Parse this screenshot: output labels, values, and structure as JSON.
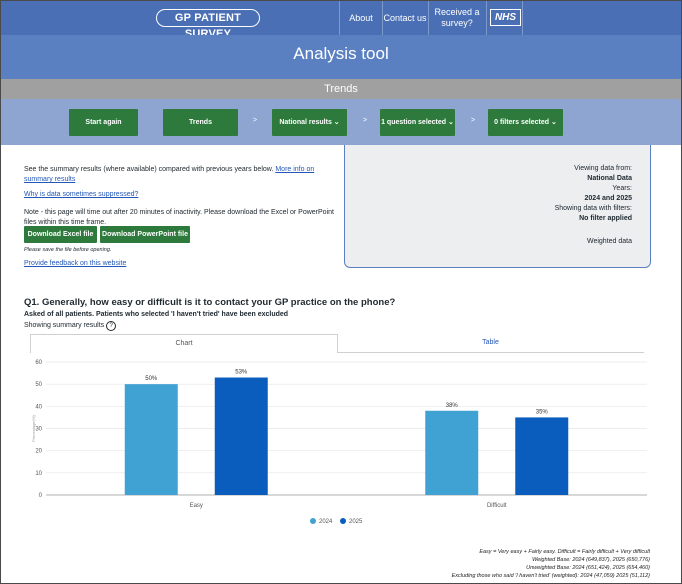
{
  "header": {
    "logo": "GP PATIENT SURVEY",
    "nav": [
      "About",
      "Contact us",
      "Received a survey?"
    ],
    "nhs": "NHS"
  },
  "page_title": "Analysis tool",
  "section_title": "Trends",
  "steps": {
    "start": "Start again",
    "trends": "Trends",
    "results": "National results",
    "question": "1 question selected",
    "filters": "0 filters selected",
    "arrow": ">"
  },
  "intro": {
    "summary_text": "See the summary results (where available) compared with previous years below.",
    "more_info_link": "More info on summary results",
    "suppressed_link": "Why is data sometimes suppressed?",
    "timeout_note": "Note - this page will time out after 20 minutes of inactivity. Please download the Excel or PowerPoint files within this time frame.",
    "download_excel": "Download Excel file",
    "download_ppt": "Download PowerPoint file",
    "save_note": "Please save the file before opening.",
    "feedback_link": "Provide feedback on this website"
  },
  "info_panel": {
    "viewing_label": "Viewing data from:",
    "viewing_value": "National Data",
    "years_label": "Years:",
    "years_value": "2024 and 2025",
    "filters_label": "Showing data with filters:",
    "filters_value": "No filter applied",
    "weighted": "Weighted data"
  },
  "question": {
    "title": "Q1. Generally, how easy or difficult is it to contact your GP practice on the phone?",
    "subtitle": "Asked of all patients. Patients who selected 'I haven't tried' have been excluded",
    "showing": "Showing summary results",
    "info_icon": "?"
  },
  "tabs": {
    "chart": "Chart",
    "table": "Table"
  },
  "colors": {
    "y2024": "#3fa2d3",
    "y2025": "#0a5dbd",
    "accent": "#2d7a3c",
    "header": "#4a6fb5"
  },
  "chart_data": {
    "type": "bar",
    "categories": [
      "Easy",
      "Difficult"
    ],
    "series": [
      {
        "name": "2024",
        "values": [
          50,
          38
        ]
      },
      {
        "name": "2025",
        "values": [
          53,
          35
        ]
      }
    ],
    "data_labels": [
      [
        "50%",
        "53%"
      ],
      [
        "38%",
        "35%"
      ]
    ],
    "ylim": [
      0,
      60
    ],
    "yticks": [
      0,
      10,
      20,
      30,
      40,
      50,
      60
    ],
    "ylabel": "Percentage(%)",
    "legend_placement": "bottom-center",
    "grid": true
  },
  "footnotes": [
    "Easy = Very easy + Fairly easy. Difficult = Fairly difficult + Very difficult",
    "Weighted Base: 2024 (649,837), 2025 (650,776)",
    "Unweighted Base: 2024 (651,424), 2025 (654,460)",
    "Excluding those who said 'I haven't tried' (weighted): 2024 (47,059) 2025 (51,112)"
  ]
}
